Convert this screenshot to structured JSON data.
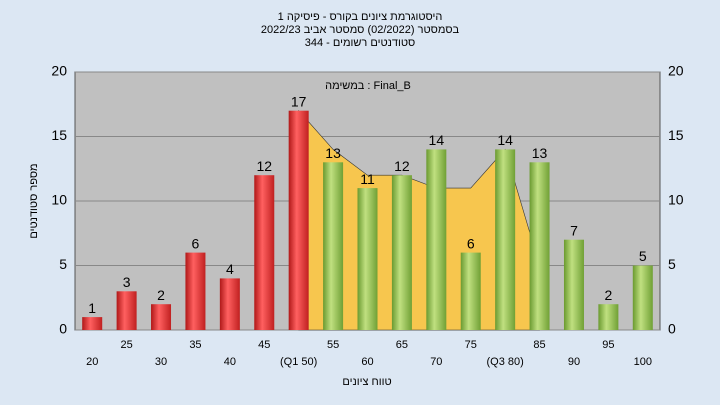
{
  "chart_data": {
    "type": "bar",
    "title": "היסטוגרמת ציונים בקורס - פיסיקה 1",
    "subtitle": "בסמסטר  (02/2022)  סמסטר אביב 2022/23",
    "subtitle2": "סטודנטים רשומים - 344",
    "annotation": "במשימה : Final_B",
    "x_label": "טווח ציונים",
    "y_label": "מספר סטודנטים",
    "categories": [
      "20",
      "25",
      "30",
      "35",
      "40",
      "45",
      "(Q1 50)",
      "55",
      "60",
      "65",
      "70",
      "75",
      "(Q3 80)",
      "85",
      "90",
      "95",
      "100"
    ],
    "values": [
      1,
      3,
      2,
      6,
      4,
      12,
      17,
      13,
      11,
      12,
      14,
      6,
      14,
      13,
      7,
      2,
      5
    ],
    "colors": [
      "#e23a3a",
      "#e23a3a",
      "#e23a3a",
      "#e23a3a",
      "#e23a3a",
      "#e23a3a",
      "#e23a3a",
      "#8fbf4f",
      "#8fbf4f",
      "#8fbf4f",
      "#8fbf4f",
      "#8fbf4f",
      "#8fbf4f",
      "#8fbf4f",
      "#8fbf4f",
      "#8fbf4f",
      "#8fbf4f"
    ],
    "area": {
      "color": "#f7c64e",
      "values": [
        null,
        null,
        null,
        null,
        null,
        null,
        17,
        14,
        12,
        12,
        11,
        11,
        14,
        5,
        null,
        null,
        null
      ]
    },
    "ylim": [
      0,
      20
    ],
    "yticks": [
      0,
      5,
      10,
      15,
      20
    ],
    "grid": true
  }
}
